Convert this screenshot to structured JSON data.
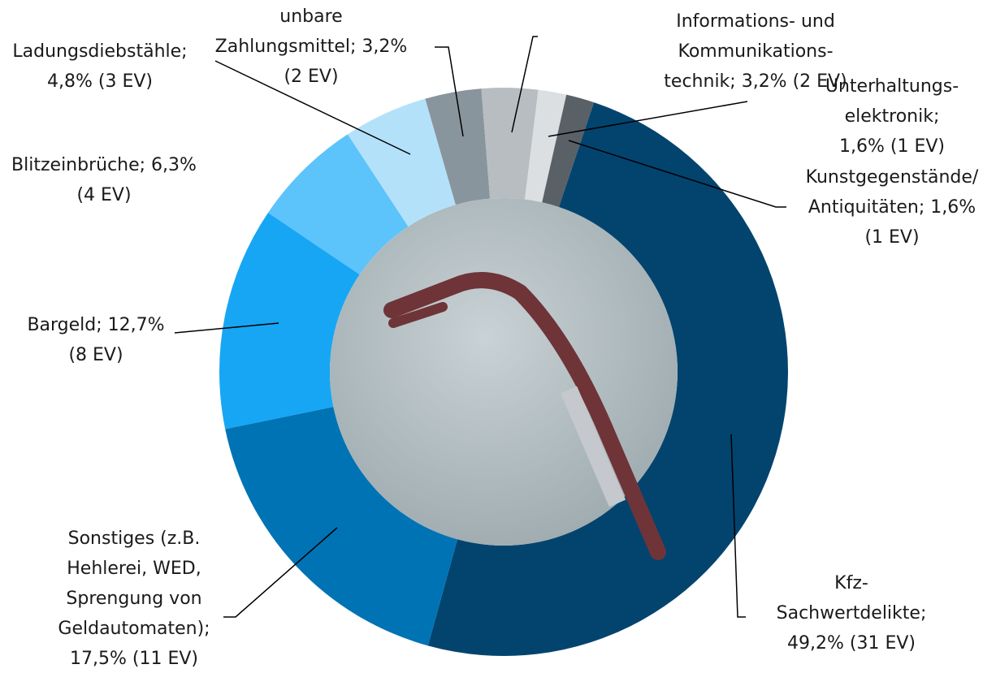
{
  "chart_data": {
    "type": "donut",
    "categories": [
      "Kfz-\nSachwertdelikte;\n49,2% (31 EV)",
      "Sonstiges (z.B.\nHehlerei, WED,\nSprengung von\nGeldautomaten);\n17,5% (11 EV)",
      "Bargeld; 12,7%\n(8 EV)",
      "Blitzeinbrüche; 6,3%\n(4 EV)",
      "Ladungsdiebstähle;\n4,8% (3 EV)",
      "unbare\nZahlungsmittel; 3,2%\n(2 EV)",
      "Informations- und Kommunikations-\ntechnik; 3,2% (2 EV)",
      "Unterhaltungs-\nelektronik; 1,6% (1 EV)",
      "Kunstgegenstände/\nAntiquitäten; 1,6%\n(1 EV)"
    ],
    "values": [
      49.2,
      17.5,
      12.7,
      6.3,
      4.8,
      3.2,
      3.2,
      1.6,
      1.6
    ],
    "colors": [
      "#03446f",
      "#0073b5",
      "#17a6f4",
      "#5cc3fb",
      "#b4e1fa",
      "#89959d",
      "#b7bdc1",
      "#dcdfe1",
      "#596167"
    ]
  }
}
